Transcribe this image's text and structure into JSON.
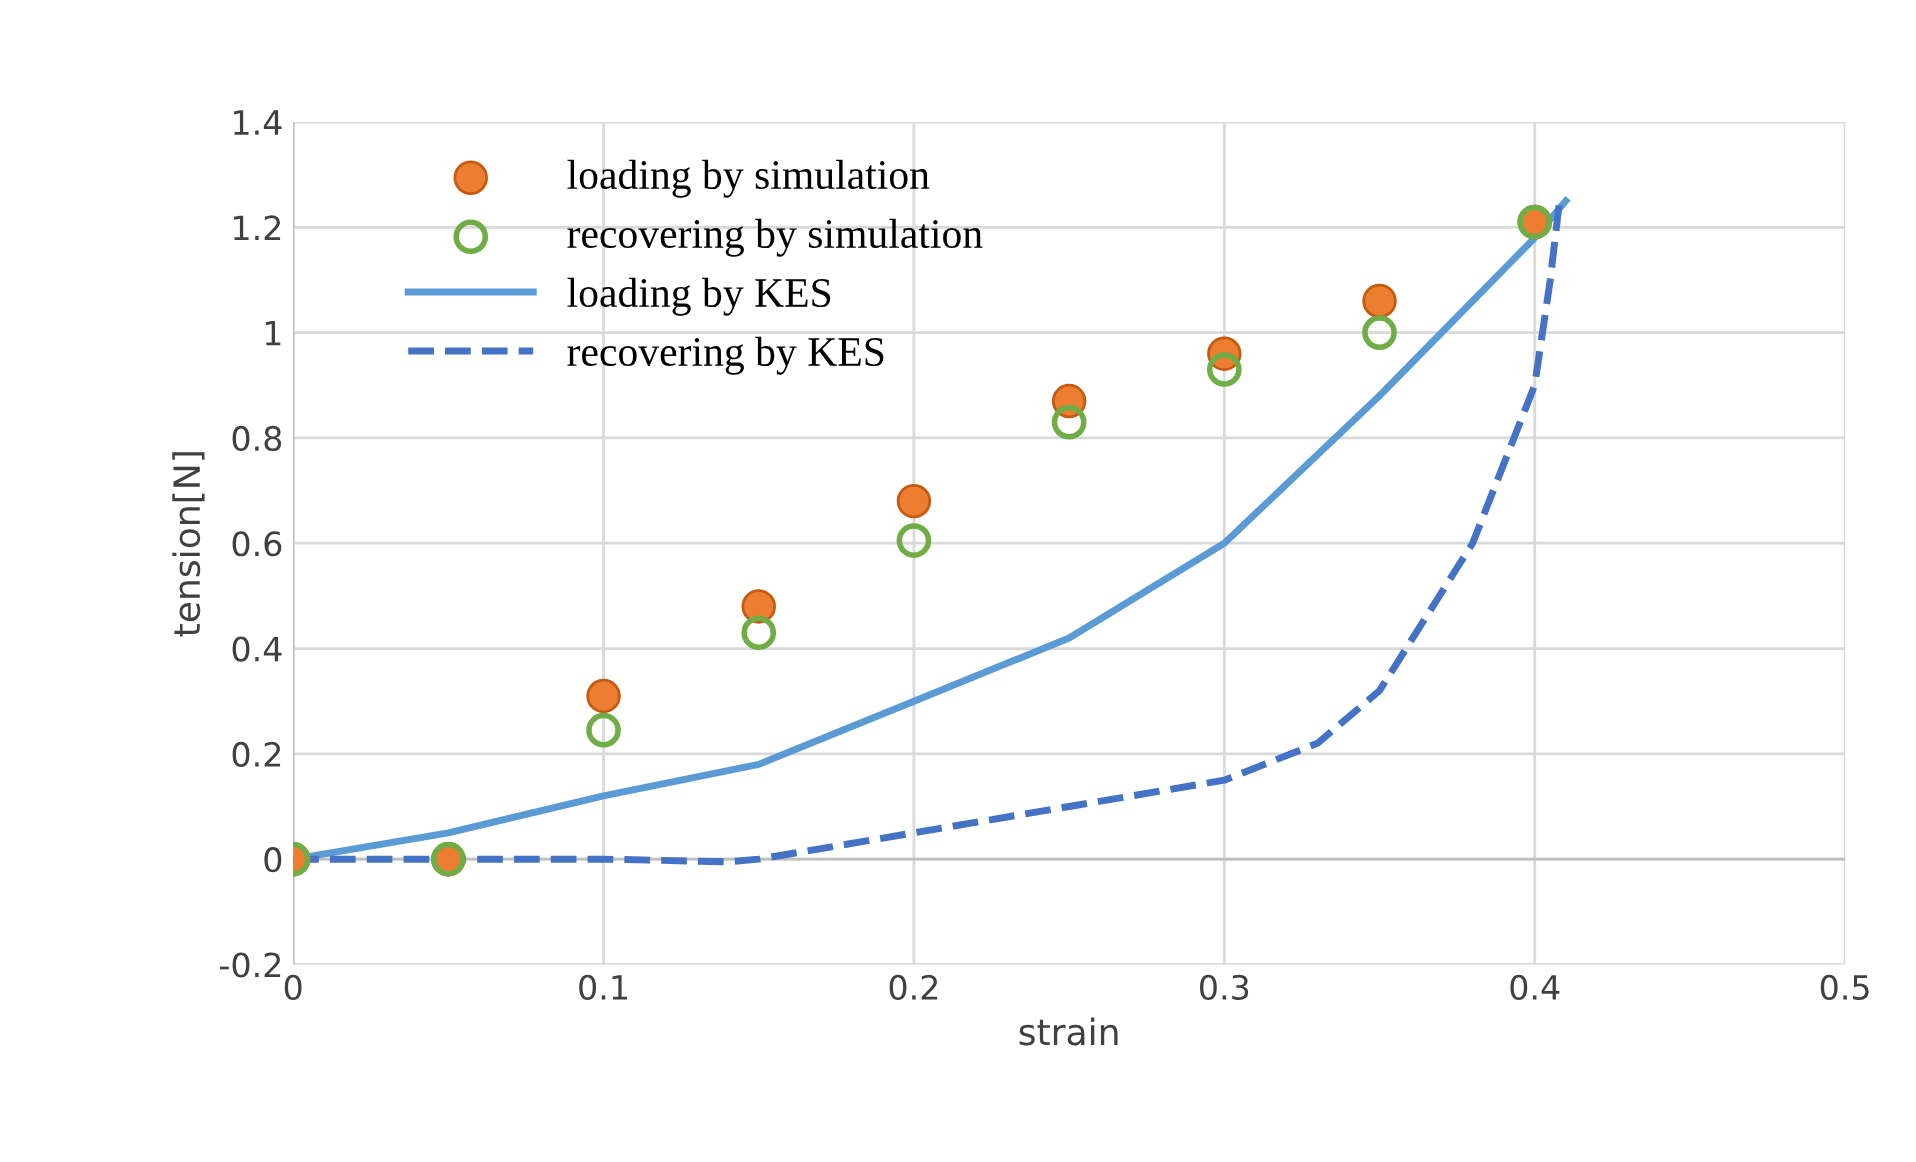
{
  "chart_data": {
    "type": "scatter",
    "xlabel": "strain",
    "ylabel": "tension[N]",
    "xlim": [
      0,
      0.5
    ],
    "xticks": [
      0,
      0.1,
      0.2,
      0.3,
      0.4,
      0.5
    ],
    "ylim": [
      -0.2,
      1.4
    ],
    "yticks": [
      -0.2,
      0,
      0.2,
      0.4,
      0.6,
      0.8,
      1,
      1.2,
      1.4
    ],
    "grid": true,
    "legend": "top left",
    "series": [
      {
        "name": "loading by simulation",
        "marker": "circle",
        "color": "#ed7d31",
        "x": [
          0,
          0.05,
          0.1,
          0.15,
          0.2,
          0.25,
          0.3,
          0.35,
          0.4
        ],
        "values": [
          0,
          0,
          0.31,
          0.48,
          0.68,
          0.87,
          0.96,
          1.06,
          1.21
        ]
      },
      {
        "name": "recovering by simulation",
        "marker": "circle",
        "color": "#70ad47",
        "x": [
          0,
          0.05,
          0.1,
          0.15,
          0.2,
          0.25,
          0.3,
          0.35,
          0.4
        ],
        "values": [
          0,
          0,
          0.245,
          0.43,
          0.605,
          0.83,
          0.93,
          1.0,
          1.21
        ]
      },
      {
        "name": "loading by KES",
        "type": "line",
        "line_style": "solid",
        "color": "#5b9bd5",
        "x": [
          0,
          0.05,
          0.1,
          0.15,
          0.2,
          0.25,
          0.3,
          0.35,
          0.4,
          0.41
        ],
        "values": [
          0,
          0.05,
          0.12,
          0.18,
          0.3,
          0.42,
          0.6,
          0.88,
          1.18,
          1.25
        ]
      },
      {
        "name": "recovering by KES",
        "type": "line",
        "line_style": "dashed",
        "color": "#4472c4",
        "x": [
          0,
          0.1,
          0.14,
          0.15,
          0.2,
          0.25,
          0.3,
          0.33,
          0.35,
          0.38,
          0.4,
          0.405,
          0.408
        ],
        "values": [
          0,
          0,
          -0.005,
          0,
          0.05,
          0.1,
          0.15,
          0.22,
          0.32,
          0.6,
          0.9,
          1.1,
          1.25
        ]
      }
    ]
  }
}
